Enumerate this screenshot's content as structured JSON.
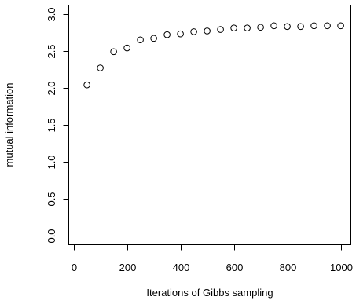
{
  "chart_data": {
    "type": "scatter",
    "xlabel": "Iterations of Gibbs sampling",
    "ylabel": "mutual information",
    "xlim": [
      -18,
      1038
    ],
    "ylim": [
      -0.12,
      3.12
    ],
    "x_ticks": [
      0,
      200,
      400,
      600,
      800,
      1000
    ],
    "x_tick_labels": [
      "0",
      "200",
      "400",
      "600",
      "800",
      "1000"
    ],
    "y_ticks": [
      0.0,
      0.5,
      1.0,
      1.5,
      2.0,
      2.5,
      3.0
    ],
    "y_tick_labels": [
      "0.0",
      "0.5",
      "1.0",
      "1.5",
      "2.0",
      "2.5",
      "3.0"
    ],
    "grid": false,
    "marker": "open-circle",
    "series": [
      {
        "x": [
          50,
          100,
          150,
          200,
          250,
          300,
          350,
          400,
          450,
          500,
          550,
          600,
          650,
          700,
          750,
          800,
          850,
          900,
          950,
          1000
        ],
        "y": [
          2.04,
          2.27,
          2.49,
          2.54,
          2.65,
          2.67,
          2.72,
          2.73,
          2.76,
          2.77,
          2.79,
          2.81,
          2.81,
          2.82,
          2.84,
          2.83,
          2.83,
          2.84,
          2.84,
          2.84
        ]
      }
    ]
  }
}
